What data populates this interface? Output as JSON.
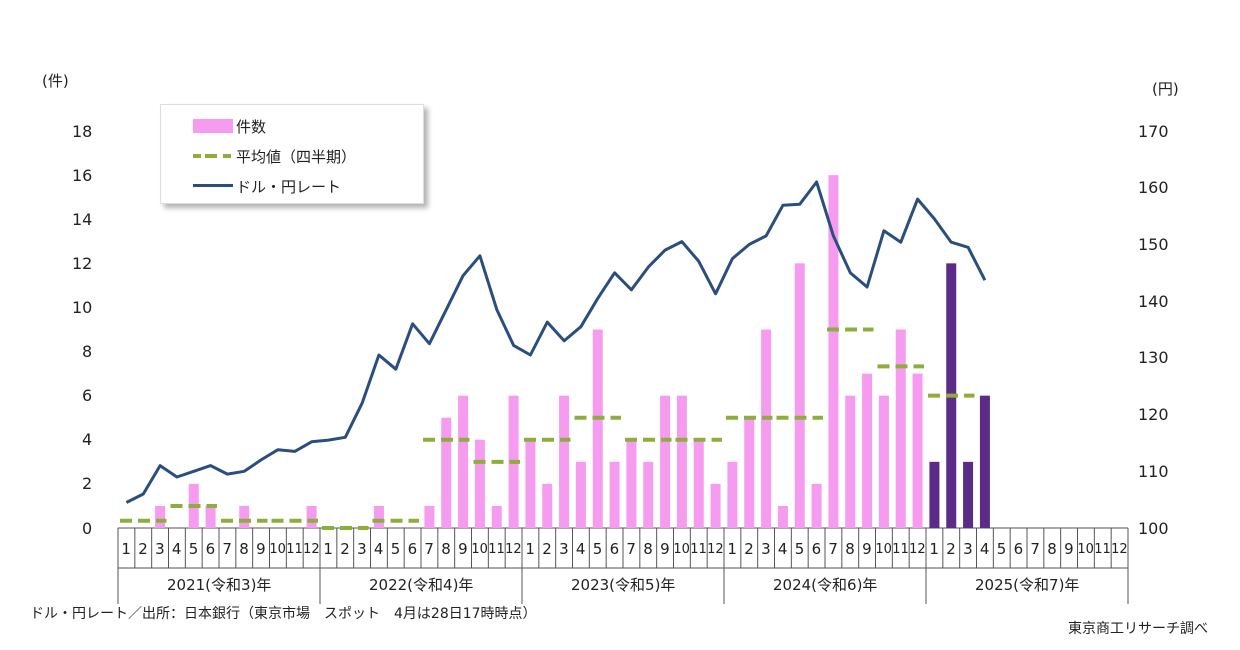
{
  "chart_data": {
    "type": "bar+line",
    "left_axis_unit": "(件)",
    "right_axis_unit": "(円)",
    "left_ticks": [
      "0",
      "2",
      "4",
      "6",
      "8",
      "10",
      "12",
      "14",
      "16",
      "18"
    ],
    "right_ticks": [
      "100",
      "110",
      "120",
      "130",
      "140",
      "150",
      "160",
      "170"
    ],
    "ylim_left": [
      0,
      18
    ],
    "ylim_right": [
      100,
      170
    ],
    "month_labels": [
      "1",
      "2",
      "3",
      "4",
      "5",
      "6",
      "7",
      "8",
      "9",
      "10",
      "11",
      "12"
    ],
    "year_labels": [
      "2021(令和3)年",
      "2022(令和4)年",
      "2023(令和5)年",
      "2024(令和6)年",
      "2025(令和7)年"
    ],
    "months_total": 60,
    "legend": {
      "bars": "件数",
      "average": "平均値（四半期）",
      "line": "ドル・円レート"
    },
    "series": [
      {
        "name": "件数",
        "values": [
          0,
          0,
          1,
          0,
          2,
          1,
          0,
          1,
          0,
          0,
          0,
          1,
          0,
          0,
          0,
          1,
          0,
          0,
          1,
          5,
          6,
          4,
          1,
          6,
          4,
          2,
          6,
          3,
          9,
          3,
          4,
          3,
          6,
          6,
          4,
          2,
          3,
          5,
          9,
          1,
          12,
          2,
          16,
          6,
          7,
          6,
          9,
          7,
          3,
          12,
          3,
          6
        ]
      },
      {
        "name": "平均値（四半期）",
        "values": [
          0.33,
          1.0,
          0.33,
          0.33,
          0.0,
          0.33,
          4.0,
          3.0,
          4.0,
          5.0,
          4.0,
          4.0,
          5.0,
          5.0,
          9.0,
          7.33,
          6.0
        ]
      },
      {
        "name": "ドル・円レート",
        "values": [
          104.5,
          106,
          111,
          109,
          110,
          111,
          109.5,
          110,
          112,
          113.8,
          113.5,
          115.2,
          115.5,
          116,
          122,
          130.5,
          128,
          136,
          132.5,
          138.5,
          144.5,
          148,
          138.5,
          132.2,
          130.5,
          136.3,
          133,
          135.5,
          140.5,
          145,
          142,
          146,
          149,
          150.5,
          147,
          141.3,
          147.5,
          150,
          151.5,
          156.9,
          157.1,
          161,
          151.5,
          145,
          142.5,
          152.4,
          150.4,
          158,
          154.5,
          150.4,
          149.5,
          143.7
        ]
      }
    ],
    "bar_colors": [
      "#f59cf0",
      "#5c2a87"
    ],
    "line_color": "#2a4e7d",
    "average_color": "#8fad3c"
  },
  "footnote_left": "ドル・円レート／出所：日本銀行（東京市場　スポット　4月は28日17時時点）",
  "footnote_right": "東京商工リサーチ調べ"
}
